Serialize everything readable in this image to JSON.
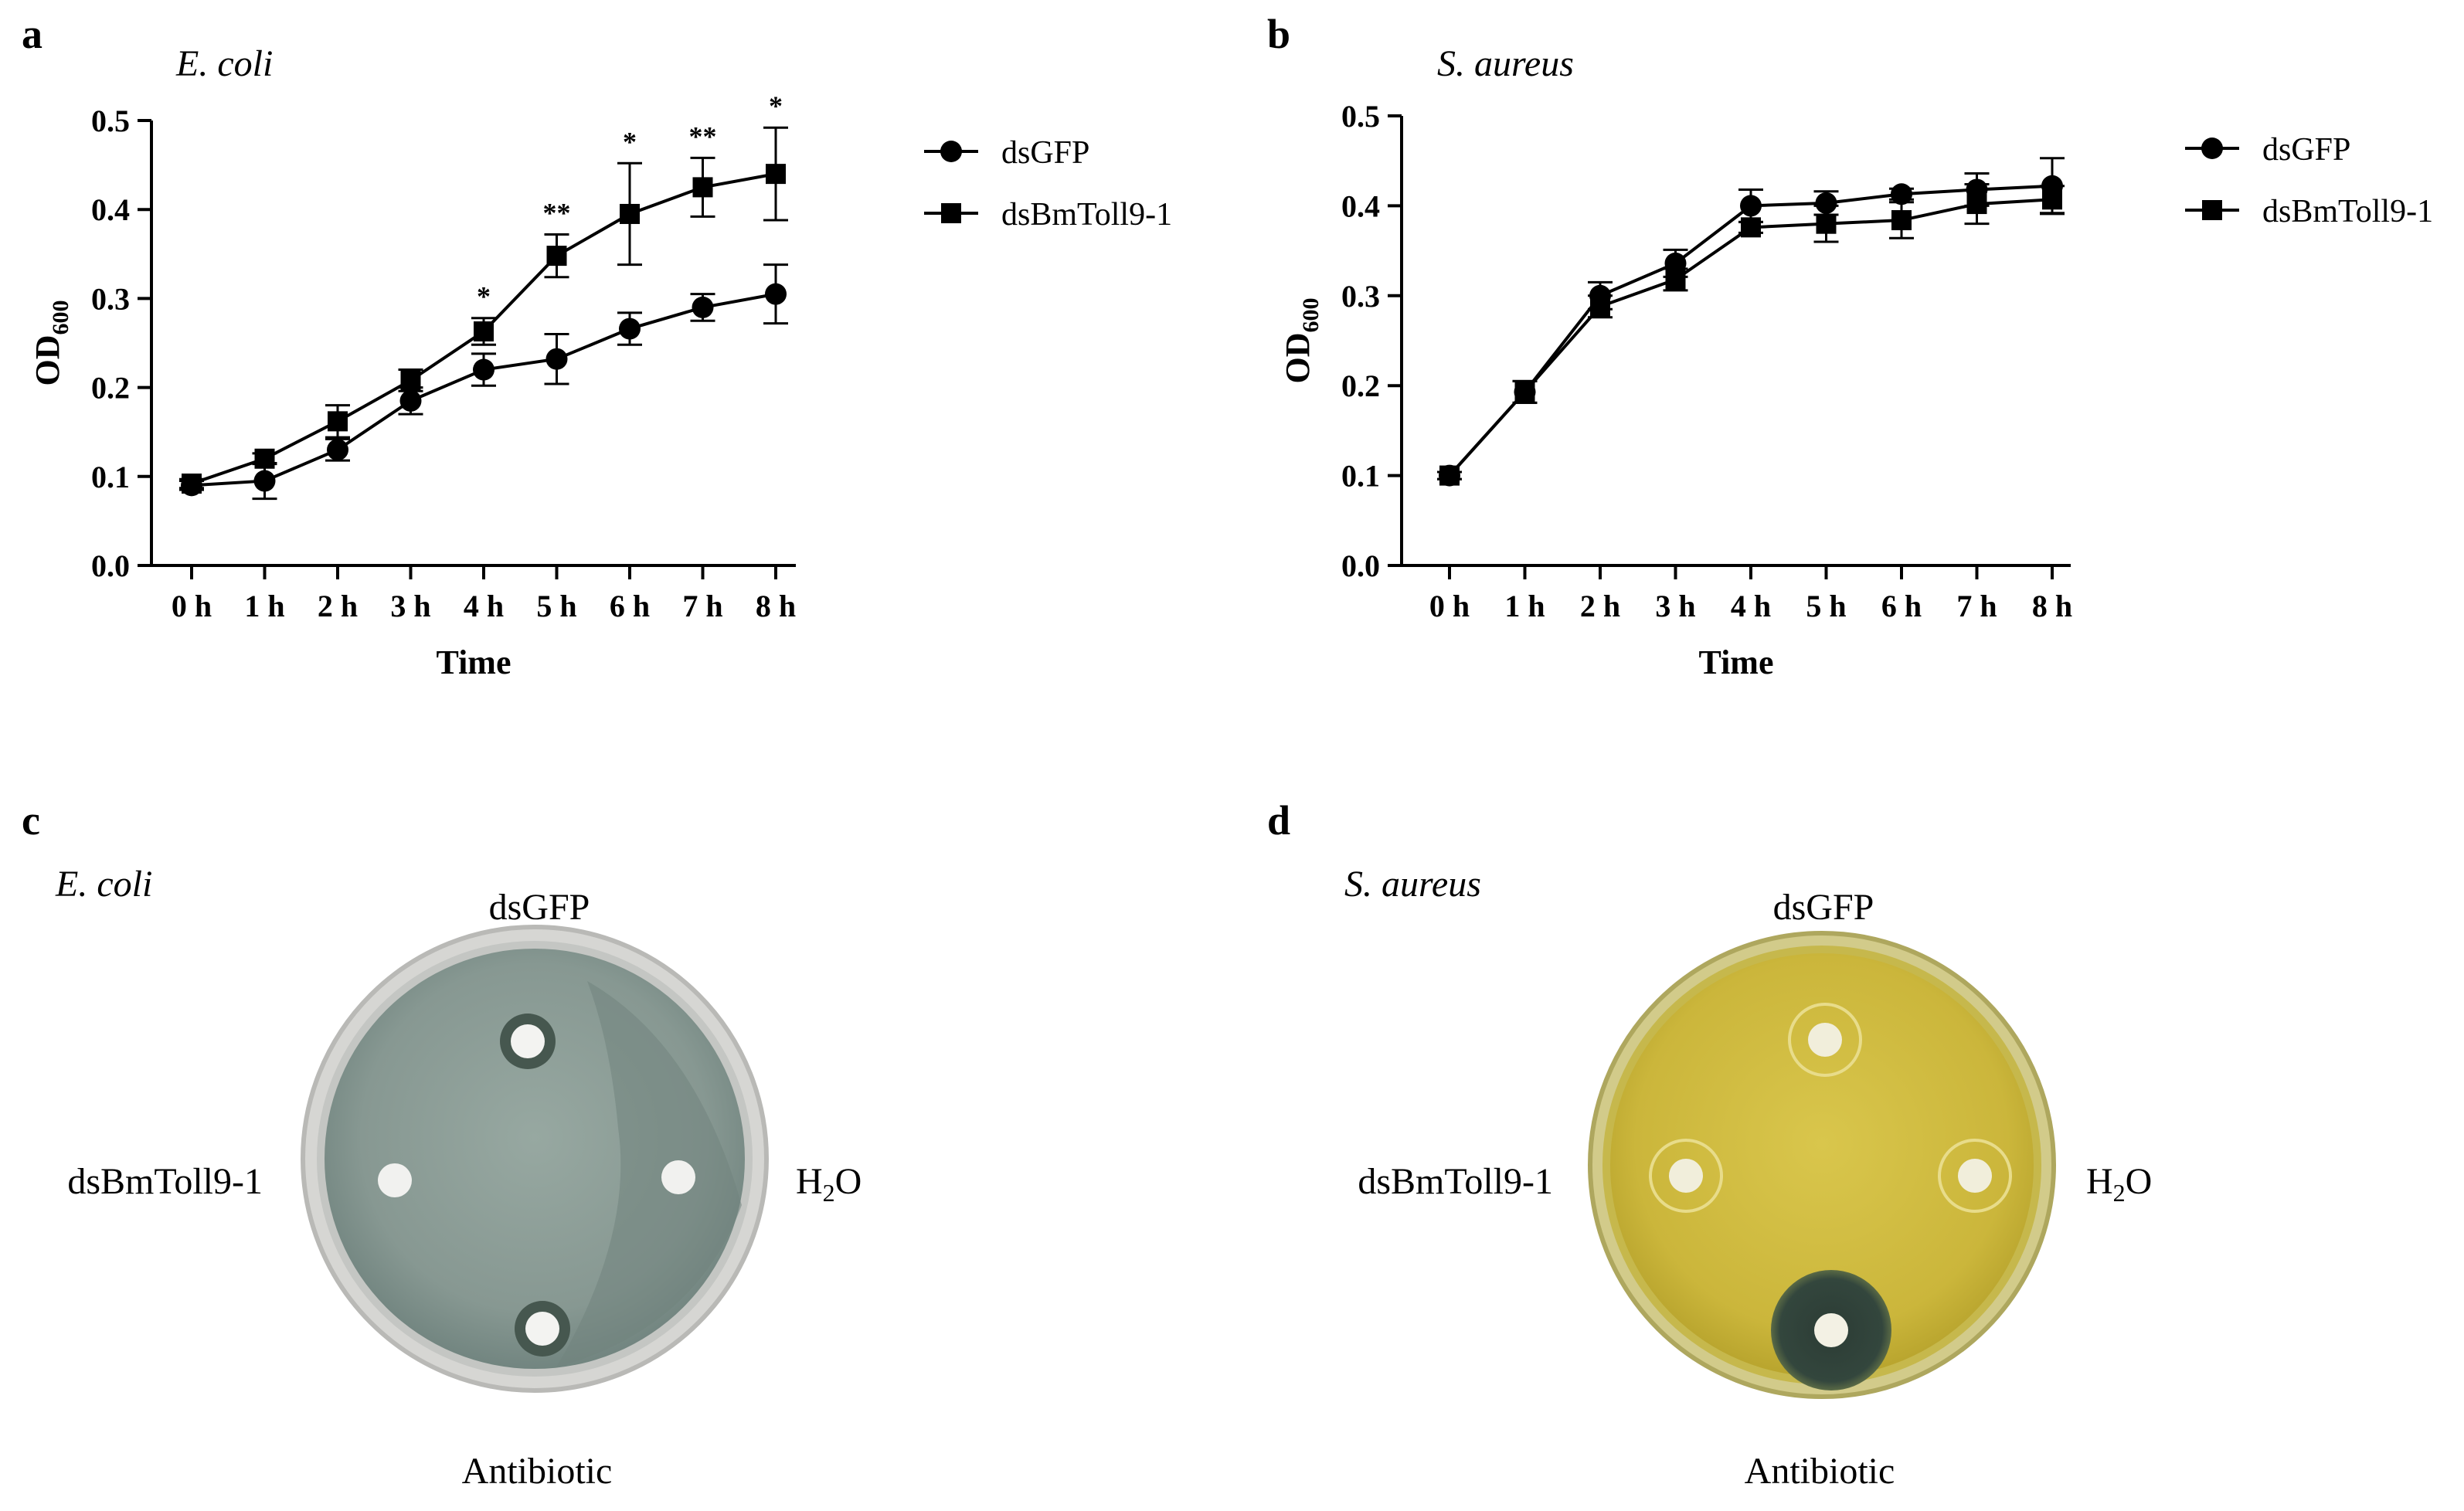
{
  "chart_data": [
    {
      "panel": "a",
      "type": "line",
      "title": "E. coli",
      "xlabel": "Time",
      "ylabel": "OD",
      "ylabel_sub": "600",
      "categories": [
        "0 h",
        "1 h",
        "2 h",
        "3 h",
        "4 h",
        "5 h",
        "6 h",
        "7 h",
        "8 h"
      ],
      "y_ticks": [
        "0.0",
        "0.1",
        "0.2",
        "0.3",
        "0.4",
        "0.5"
      ],
      "ylim": [
        0,
        0.5
      ],
      "legend_position": "right",
      "series": [
        {
          "name": "dsGFP",
          "marker": "circle",
          "values": [
            0.09,
            0.095,
            0.13,
            0.185,
            0.22,
            0.232,
            0.266,
            0.29,
            0.305
          ],
          "errors": [
            0.005,
            0.02,
            0.012,
            0.015,
            0.018,
            0.028,
            0.018,
            0.015,
            0.033
          ]
        },
        {
          "name": "dsBmToll9-1",
          "marker": "square",
          "values": [
            0.092,
            0.12,
            0.162,
            0.208,
            0.263,
            0.348,
            0.395,
            0.425,
            0.44
          ],
          "errors": [
            0.005,
            0.006,
            0.018,
            0.012,
            0.015,
            0.024,
            0.057,
            0.033,
            0.052
          ]
        }
      ],
      "significance": [
        "",
        "",
        "",
        "",
        "*",
        "**",
        "*",
        "**",
        "*"
      ]
    },
    {
      "panel": "b",
      "type": "line",
      "title": "S. aureus",
      "xlabel": "Time",
      "ylabel": "OD",
      "ylabel_sub": "600",
      "categories": [
        "0 h",
        "1 h",
        "2 h",
        "3 h",
        "4 h",
        "5 h",
        "6 h",
        "7 h",
        "8 h"
      ],
      "y_ticks": [
        "0.0",
        "0.1",
        "0.2",
        "0.3",
        "0.4",
        "0.5"
      ],
      "ylim": [
        0,
        0.5
      ],
      "legend_position": "right",
      "series": [
        {
          "name": "dsGFP",
          "marker": "circle",
          "values": [
            0.1,
            0.193,
            0.3,
            0.336,
            0.4,
            0.403,
            0.413,
            0.418,
            0.422
          ],
          "errors": [
            0.004,
            0.012,
            0.015,
            0.015,
            0.018,
            0.013,
            0.006,
            0.018,
            0.031
          ]
        },
        {
          "name": "dsBmToll9-1",
          "marker": "square",
          "values": [
            0.1,
            0.193,
            0.288,
            0.318,
            0.376,
            0.38,
            0.384,
            0.402,
            0.407
          ],
          "errors": [
            0.004,
            0.012,
            0.012,
            0.012,
            0.006,
            0.02,
            0.02,
            0.022,
            0.015
          ]
        }
      ],
      "significance": [
        "",
        "",
        "",
        "",
        "",
        "",
        "",
        "",
        ""
      ]
    }
  ],
  "plates": {
    "c": {
      "letter": "c",
      "organism": "E. coli",
      "labels": {
        "top": "dsGFP",
        "left": "dsBmToll9-1",
        "right_main": "H",
        "right_sub": "2",
        "right_tail": "O",
        "bottom": "Antibiotic"
      },
      "colors": {
        "rim": "#cfcfcd",
        "agar": "#8a9c95",
        "agar_dark": "#6d7f7a"
      }
    },
    "d": {
      "letter": "d",
      "organism": "S. aureus",
      "labels": {
        "top": "dsGFP",
        "left": "dsBmToll9-1",
        "right_main": "H",
        "right_sub": "2",
        "right_tail": "O",
        "bottom": "Antibiotic"
      },
      "colors": {
        "rim": "#c9c07a",
        "agar": "#cdbb3e",
        "agar_dark": "#b5a22a",
        "inhibition": "#2f4038"
      }
    }
  }
}
